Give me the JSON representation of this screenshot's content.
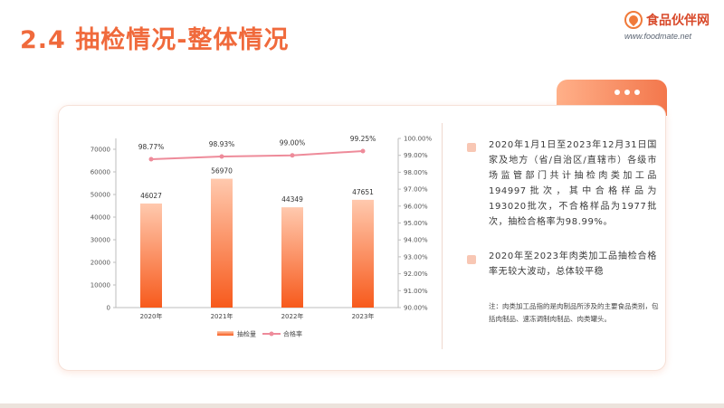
{
  "page": {
    "title": "2.4 抽检情况-整体情况"
  },
  "logo": {
    "name_cn": "食品伙伴网",
    "url_text": "www.foodmate.net"
  },
  "colors": {
    "title": "#f06a3c",
    "bar_top": "#ffc9ae",
    "bar_bottom": "#f75a1c",
    "line": "#ee8b9a",
    "bullet": "#f8c7b4"
  },
  "text_panel": {
    "paragraph_1": "2020年1月1日至2023年12月31日国家及地方（省/自治区/直辖市）各级市场监管部门共计抽检肉类加工品194997批次，其中合格样品为193020批次，不合格样品为1977批次，抽检合格率为98.99%。",
    "paragraph_2": "2020年至2023年肉类加工品抽检合格率无较大波动，总体较平稳",
    "note": "注：肉类加工品指的是肉制品所涉及的主要食品类别，包括肉制品、速冻调制肉制品、肉类罐头。"
  },
  "chart_data": {
    "type": "bar",
    "categories": [
      "2020年",
      "2021年",
      "2022年",
      "2023年"
    ],
    "series": [
      {
        "name": "抽检量",
        "type": "bar",
        "axis": "left",
        "values": [
          46027,
          56970,
          44349,
          47651
        ],
        "labels": [
          "46027",
          "56970",
          "44349",
          "47651"
        ]
      },
      {
        "name": "合格率",
        "type": "line",
        "axis": "right",
        "values": [
          98.77,
          98.93,
          99.0,
          99.25
        ],
        "labels": [
          "98.77%",
          "98.93%",
          "99.00%",
          "99.25%"
        ]
      }
    ],
    "y_left": {
      "ylim": [
        0,
        70000
      ],
      "ticks": [
        0,
        10000,
        20000,
        30000,
        40000,
        50000,
        60000,
        70000
      ],
      "tick_labels": [
        "0",
        "10000",
        "20000",
        "30000",
        "40000",
        "50000",
        "60000",
        "70000"
      ]
    },
    "y_right": {
      "ylim": [
        90,
        100
      ],
      "ticks": [
        90,
        91,
        92,
        93,
        94,
        95,
        96,
        97,
        98,
        99,
        100
      ],
      "tick_labels": [
        "90.00%",
        "91.00%",
        "92.00%",
        "93.00%",
        "94.00%",
        "95.00%",
        "96.00%",
        "97.00%",
        "98.00%",
        "99.00%",
        "100.00%"
      ]
    },
    "grid": false,
    "legend": "bottom"
  }
}
